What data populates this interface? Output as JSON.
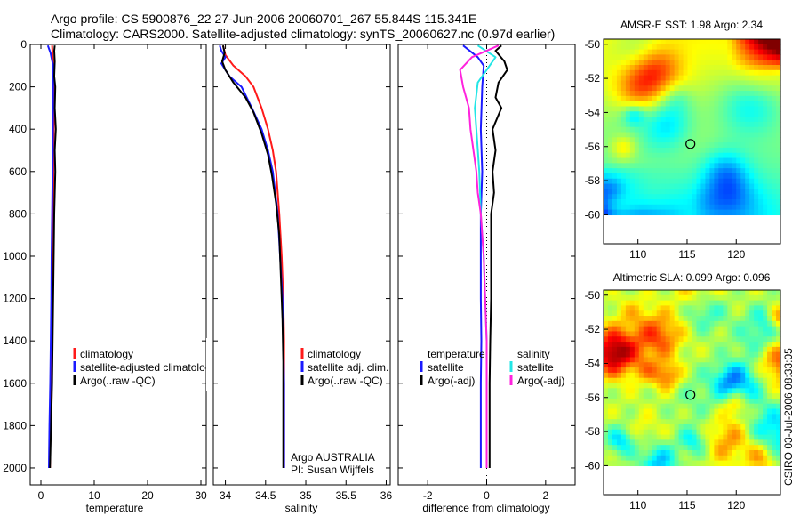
{
  "header": {
    "line1": "Argo profile: CS 5900876_22 27-Jun-2006 20060701_267 55.844S 115.341E",
    "line2": "Climatology: CARS2000. Satellite-adjusted climatology: synTS_20060627.nc (0.97d earlier)"
  },
  "footer": {
    "stamp": "CSIRO 03-Jul-2006 08:33:05"
  },
  "colors": {
    "climatology": "#ff1a1a",
    "satellite": "#1a1aff",
    "argo": "#000000",
    "sal_satellite": "#22e6e6",
    "sal_argo": "#ff22dd"
  },
  "chart_data": [
    {
      "type": "line",
      "title": "",
      "xlabel": "temperature",
      "ylabel": "",
      "xlim": [
        -2,
        31
      ],
      "ylim": [
        2080,
        0
      ],
      "xticks": [
        0,
        10,
        20,
        30
      ],
      "yticks": [
        0,
        200,
        400,
        600,
        800,
        1000,
        1200,
        1400,
        1600,
        1800,
        2000
      ],
      "legend": [
        "climatology",
        "satellite-adjusted climatology",
        "Argo(..raw -QC)"
      ],
      "series": [
        {
          "name": "climatology",
          "color": "#ff1a1a",
          "points": [
            [
              2.1,
              5
            ],
            [
              2.2,
              50
            ],
            [
              2.3,
              100
            ],
            [
              2.4,
              150
            ],
            [
              2.5,
              200
            ],
            [
              2.45,
              300
            ],
            [
              2.4,
              400
            ],
            [
              2.35,
              600
            ],
            [
              2.3,
              800
            ],
            [
              2.25,
              1000
            ],
            [
              2.15,
              1200
            ],
            [
              2.05,
              1400
            ],
            [
              1.95,
              1600
            ],
            [
              1.8,
              1800
            ],
            [
              1.7,
              2000
            ]
          ]
        },
        {
          "name": "satellite-adjusted climatology",
          "color": "#1a1aff",
          "points": [
            [
              1.3,
              5
            ],
            [
              1.8,
              40
            ],
            [
              2.3,
              100
            ],
            [
              2.3,
              200
            ],
            [
              2.25,
              400
            ],
            [
              2.2,
              600
            ],
            [
              2.1,
              800
            ],
            [
              2.0,
              1000
            ],
            [
              1.95,
              1200
            ],
            [
              1.85,
              1400
            ],
            [
              1.75,
              1600
            ],
            [
              1.6,
              1800
            ],
            [
              1.5,
              2000
            ]
          ]
        },
        {
          "name": "Argo(..raw -QC)",
          "color": "#000000",
          "points": [
            [
              2.6,
              5
            ],
            [
              2.5,
              30
            ],
            [
              2.6,
              80
            ],
            [
              2.5,
              150
            ],
            [
              2.7,
              200
            ],
            [
              2.6,
              300
            ],
            [
              2.8,
              400
            ],
            [
              2.6,
              500
            ],
            [
              2.7,
              600
            ],
            [
              2.6,
              700
            ],
            [
              2.5,
              800
            ],
            [
              2.4,
              1000
            ],
            [
              2.3,
              1200
            ],
            [
              2.2,
              1400
            ],
            [
              2.1,
              1600
            ],
            [
              1.9,
              1800
            ],
            [
              1.7,
              2000
            ]
          ]
        }
      ]
    },
    {
      "type": "line",
      "title": "",
      "xlabel": "salinity",
      "ylabel": "",
      "xlim": [
        33.85,
        36.05
      ],
      "ylim": [
        2080,
        0
      ],
      "xticks": [
        34,
        34.5,
        35,
        35.5,
        36
      ],
      "tick_labels": [
        "34",
        "34.5",
        "35",
        "35.5",
        "36"
      ],
      "legend": [
        "climatology",
        "satellite adj. clim.",
        "Argo(..raw -QC)"
      ],
      "annotation": [
        "Argo AUSTRALIA",
        "PI: Susan Wijffels"
      ],
      "series": [
        {
          "name": "climatology",
          "color": "#ff1a1a",
          "points": [
            [
              33.97,
              5
            ],
            [
              34.0,
              50
            ],
            [
              34.1,
              100
            ],
            [
              34.25,
              150
            ],
            [
              34.35,
              200
            ],
            [
              34.45,
              300
            ],
            [
              34.53,
              400
            ],
            [
              34.59,
              500
            ],
            [
              34.63,
              600
            ],
            [
              34.67,
              800
            ],
            [
              34.7,
              1000
            ],
            [
              34.72,
              1200
            ],
            [
              34.73,
              1400
            ],
            [
              34.73,
              1600
            ],
            [
              34.73,
              1800
            ],
            [
              34.73,
              2000
            ]
          ]
        },
        {
          "name": "satellite adj. clim.",
          "color": "#1a1aff",
          "points": [
            [
              33.93,
              5
            ],
            [
              33.95,
              30
            ],
            [
              34.0,
              60
            ],
            [
              33.95,
              90
            ],
            [
              34.05,
              150
            ],
            [
              34.2,
              200
            ],
            [
              34.33,
              300
            ],
            [
              34.45,
              400
            ],
            [
              34.53,
              500
            ],
            [
              34.59,
              600
            ],
            [
              34.65,
              800
            ],
            [
              34.68,
              1000
            ],
            [
              34.71,
              1200
            ],
            [
              34.72,
              1400
            ],
            [
              34.73,
              1600
            ],
            [
              34.73,
              1800
            ],
            [
              34.73,
              2000
            ]
          ]
        },
        {
          "name": "Argo(..raw -QC)",
          "color": "#000000",
          "points": [
            [
              33.97,
              5
            ],
            [
              33.99,
              40
            ],
            [
              33.96,
              80
            ],
            [
              34.0,
              120
            ],
            [
              34.1,
              180
            ],
            [
              34.25,
              250
            ],
            [
              34.35,
              320
            ],
            [
              34.45,
              420
            ],
            [
              34.53,
              520
            ],
            [
              34.58,
              620
            ],
            [
              34.63,
              750
            ],
            [
              34.67,
              900
            ],
            [
              34.69,
              1100
            ],
            [
              34.71,
              1300
            ],
            [
              34.72,
              1500
            ],
            [
              34.72,
              1700
            ],
            [
              34.72,
              2000
            ]
          ]
        }
      ]
    },
    {
      "type": "line",
      "title": "",
      "xlabel": "difference from climatology",
      "ylabel": "",
      "xlim": [
        -3,
        3
      ],
      "ylim": [
        2080,
        0
      ],
      "xticks": [
        -2,
        0,
        2
      ],
      "legend_temperature": {
        "title": "temperature",
        "items": [
          "satellite",
          "Argo(-adj)"
        ]
      },
      "legend_salinity": {
        "title": "salinity",
        "items": [
          "satellite",
          "Argo(-adj)"
        ]
      },
      "series": [
        {
          "name": "temperature satellite",
          "color": "#1a1aff",
          "points": [
            [
              -0.8,
              5
            ],
            [
              -0.3,
              60
            ],
            [
              -0.1,
              100
            ],
            [
              -0.15,
              200
            ],
            [
              -0.2,
              400
            ],
            [
              -0.15,
              600
            ],
            [
              -0.2,
              800
            ],
            [
              -0.2,
              1000
            ],
            [
              -0.2,
              1200
            ],
            [
              -0.18,
              1400
            ],
            [
              -0.2,
              1600
            ],
            [
              -0.2,
              1800
            ],
            [
              -0.2,
              2000
            ]
          ]
        },
        {
          "name": "temperature Argo(-adj)",
          "color": "#000000",
          "points": [
            [
              0.5,
              5
            ],
            [
              0.3,
              30
            ],
            [
              0.6,
              80
            ],
            [
              0.7,
              120
            ],
            [
              0.4,
              180
            ],
            [
              0.3,
              250
            ],
            [
              0.5,
              300
            ],
            [
              0.2,
              400
            ],
            [
              0.3,
              500
            ],
            [
              0.2,
              600
            ],
            [
              0.25,
              700
            ],
            [
              0.15,
              800
            ],
            [
              0.15,
              1000
            ],
            [
              0.15,
              1200
            ],
            [
              0.12,
              1400
            ],
            [
              0.1,
              1600
            ],
            [
              0.1,
              1800
            ],
            [
              0.1,
              2000
            ]
          ]
        },
        {
          "name": "salinity satellite",
          "color": "#22e6e6",
          "points": [
            [
              -0.3,
              5
            ],
            [
              0.3,
              60
            ],
            [
              0.0,
              120
            ],
            [
              -0.3,
              180
            ],
            [
              -0.4,
              300
            ],
            [
              -0.35,
              400
            ],
            [
              -0.25,
              600
            ],
            [
              -0.2,
              800
            ],
            [
              -0.1,
              1000
            ],
            [
              -0.05,
              1200
            ],
            [
              0.0,
              1400
            ],
            [
              0.0,
              1600
            ],
            [
              0.0,
              1800
            ],
            [
              0.0,
              2000
            ]
          ]
        },
        {
          "name": "salinity Argo(-adj)",
          "color": "#ff22dd",
          "points": [
            [
              0.4,
              5
            ],
            [
              -0.5,
              60
            ],
            [
              -0.9,
              120
            ],
            [
              -0.8,
              200
            ],
            [
              -0.6,
              300
            ],
            [
              -0.55,
              400
            ],
            [
              -0.45,
              500
            ],
            [
              -0.35,
              600
            ],
            [
              -0.3,
              700
            ],
            [
              -0.2,
              800
            ],
            [
              -0.15,
              900
            ],
            [
              -0.1,
              1000
            ],
            [
              -0.05,
              1200
            ],
            [
              0.0,
              1400
            ],
            [
              0.0,
              1600
            ],
            [
              0.0,
              1800
            ],
            [
              0.0,
              2000
            ]
          ]
        }
      ]
    },
    {
      "type": "heatmap",
      "title": "AMSR-E SST: 1.98  Argo: 2.34",
      "xlabel": "",
      "ylabel": "",
      "xlim": [
        106.5,
        124.5
      ],
      "ylim": [
        -61.7,
        -49.7
      ],
      "xticks": [
        110,
        115,
        120
      ],
      "yticks": [
        -50,
        -52,
        -54,
        -56,
        -58,
        -60
      ],
      "data_ylim": [
        -60,
        -49.7
      ],
      "marker": {
        "lon": 115.341,
        "lat": -55.844
      },
      "seed": 7
    },
    {
      "type": "heatmap",
      "title": "Altimetric SLA: 0.099  Argo: 0.096",
      "xlabel": "",
      "ylabel": "",
      "xlim": [
        106.5,
        124.5
      ],
      "ylim": [
        -61.7,
        -49.7
      ],
      "xticks": [
        110,
        115,
        120
      ],
      "yticks": [
        -50,
        -52,
        -54,
        -56,
        -58,
        -60
      ],
      "data_ylim": [
        -60,
        -49.7
      ],
      "marker": {
        "lon": 115.341,
        "lat": -55.844
      },
      "seed": 13
    }
  ]
}
